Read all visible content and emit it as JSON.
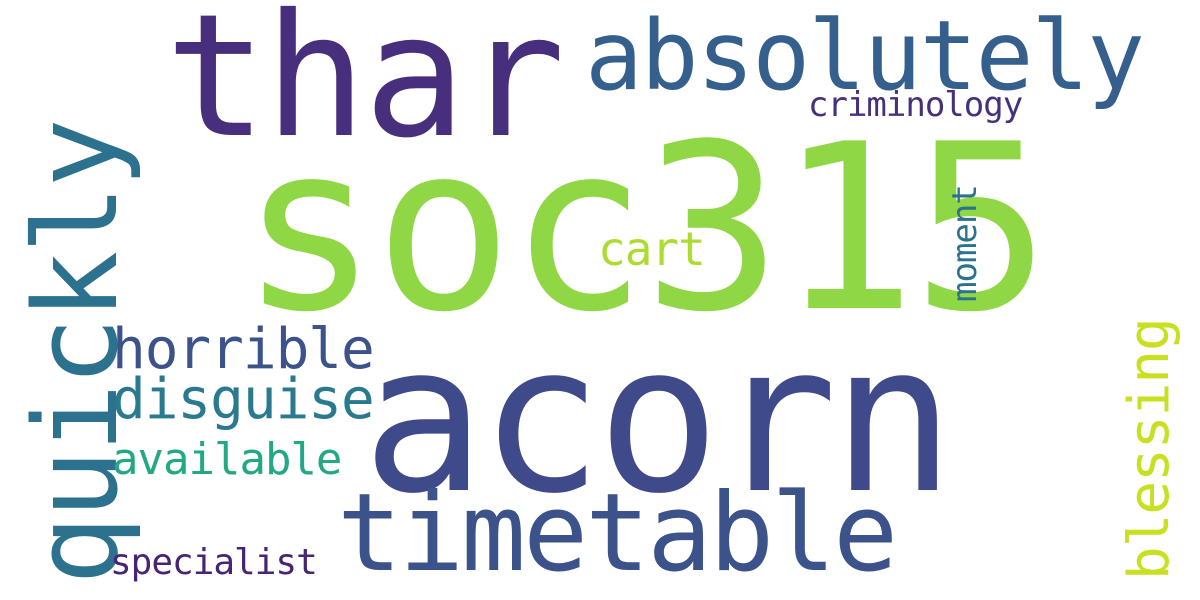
{
  "words": {
    "soc315": {
      "text": "soc315",
      "color": "#8fd744"
    },
    "acorn": {
      "text": "acorn",
      "color": "#3e4a89"
    },
    "thar": {
      "text": "thar",
      "color": "#472f7d"
    },
    "absolutely": {
      "text": "absolutely",
      "color": "#355f8d"
    },
    "timetable": {
      "text": "timetable",
      "color": "#3b528b"
    },
    "quickly": {
      "text": "quickly",
      "color": "#2c728e"
    },
    "horrible": {
      "text": "horrible",
      "color": "#3b528b"
    },
    "disguise": {
      "text": "disguise",
      "color": "#297a8e"
    },
    "available": {
      "text": "available",
      "color": "#22a884"
    },
    "specialist": {
      "text": "specialist",
      "color": "#482475"
    },
    "criminology": {
      "text": "criminology",
      "color": "#46307e"
    },
    "cart": {
      "text": "cart",
      "color": "#addc30"
    },
    "moment": {
      "text": "moment",
      "color": "#2c728e"
    },
    "blessing": {
      "text": "blessing",
      "color": "#c8e020"
    }
  }
}
